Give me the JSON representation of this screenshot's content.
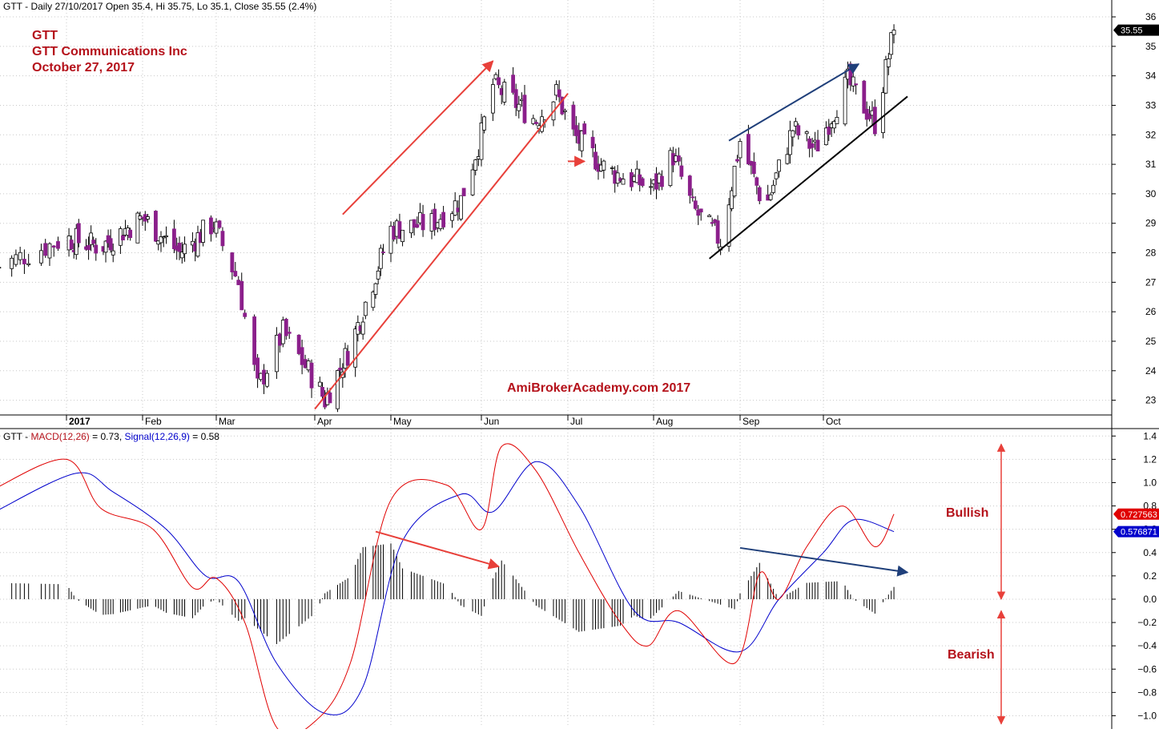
{
  "price_header": {
    "prefix": "GTT - Daily 27/10/2017 Open 35.4, Hi 35.75, Lo 35.1, Close 35.55 (2.4%)"
  },
  "macd_header": {
    "prefix": "GTT - ",
    "macd_label": "MACD(12,26)",
    "macd_value": " = 0.73, ",
    "signal_label": "Signal(12,26,9)",
    "signal_value": " = 0.58"
  },
  "title_block": {
    "line1": "GTT",
    "line2": "GTT Communications Inc",
    "line3": "October 27, 2017"
  },
  "watermark": "AmiBrokerAcademy.com  2017",
  "annotations": {
    "bullish": "Bullish",
    "bearish": "Bearish"
  },
  "last_price_label": "35.55",
  "macd_last_label": "0.727563",
  "signal_last_label": "0.576871",
  "colors": {
    "up_candle": "#ffffff",
    "down_candle": "#8b1f8b",
    "macd_line": "#e00000",
    "signal_line": "#0000cc",
    "trend_red": "#e8403a",
    "trend_blue": "#1f3f7a",
    "annotation_red": "#b5121b"
  },
  "chart_data": [
    {
      "type": "candlestick",
      "title": "GTT - Daily 27/10/2017",
      "x_tick_labels": [
        "2017",
        "Feb",
        "Mar",
        "Apr",
        "May",
        "Jun",
        "Jul",
        "Aug",
        "Sep",
        "Oct"
      ],
      "y_tick_labels": [
        "23",
        "24",
        "25",
        "26",
        "27",
        "28",
        "29",
        "30",
        "31",
        "32",
        "33",
        "34",
        "35",
        "36"
      ],
      "ylim": [
        22.5,
        36.3
      ],
      "grid": true,
      "last": {
        "date": "27/10/2017",
        "open": 35.4,
        "high": 35.75,
        "low": 35.1,
        "close": 35.55,
        "change_pct": 2.4
      },
      "close_path_anchors": [
        {
          "date": "2016-12-15",
          "close": 27.5
        },
        {
          "date": "2017-01-01",
          "close": 28.5
        },
        {
          "date": "2017-01-15",
          "close": 28.2
        },
        {
          "date": "2017-02-01",
          "close": 29.2
        },
        {
          "date": "2017-02-15",
          "close": 28.0
        },
        {
          "date": "2017-02-28",
          "close": 29.0
        },
        {
          "date": "2017-03-08",
          "close": 27.0
        },
        {
          "date": "2017-03-14",
          "close": 23.4
        },
        {
          "date": "2017-03-22",
          "close": 25.3
        },
        {
          "date": "2017-04-05",
          "close": 23.0
        },
        {
          "date": "2017-04-15",
          "close": 24.8
        },
        {
          "date": "2017-05-01",
          "close": 28.8
        },
        {
          "date": "2017-05-15",
          "close": 29.0
        },
        {
          "date": "2017-05-25",
          "close": 29.8
        },
        {
          "date": "2017-06-01",
          "close": 32.0
        },
        {
          "date": "2017-06-05",
          "close": 33.7
        },
        {
          "date": "2017-06-20",
          "close": 32.5
        },
        {
          "date": "2017-06-27",
          "close": 33.4
        },
        {
          "date": "2017-07-03",
          "close": 32.0
        },
        {
          "date": "2017-07-15",
          "close": 30.8
        },
        {
          "date": "2017-08-01",
          "close": 30.2
        },
        {
          "date": "2017-08-08",
          "close": 31.3
        },
        {
          "date": "2017-08-15",
          "close": 29.5
        },
        {
          "date": "2017-08-25",
          "close": 28.4
        },
        {
          "date": "2017-09-01",
          "close": 31.8
        },
        {
          "date": "2017-09-10",
          "close": 29.5
        },
        {
          "date": "2017-09-20",
          "close": 32.2
        },
        {
          "date": "2017-09-28",
          "close": 31.5
        },
        {
          "date": "2017-10-10",
          "close": 33.8
        },
        {
          "date": "2017-10-20",
          "close": 32.4
        },
        {
          "date": "2017-10-27",
          "close": 35.55
        }
      ],
      "trendlines": [
        {
          "color": "red",
          "from": {
            "date": "2017-04-12",
            "price": 29.3
          },
          "to": {
            "date": "2017-06-05",
            "price": 34.5
          },
          "arrow": true
        },
        {
          "color": "red",
          "from": {
            "date": "2017-04-01",
            "price": 22.7
          },
          "to": {
            "date": "2017-07-01",
            "price": 33.4
          },
          "arrow": false
        },
        {
          "color": "red",
          "from": {
            "date": "2017-07-01",
            "price": 31.1
          },
          "to": {
            "date": "2017-07-07",
            "price": 31.1
          },
          "arrow": true
        },
        {
          "color": "blue",
          "from": {
            "date": "2017-08-28",
            "price": 31.8
          },
          "to": {
            "date": "2017-10-14",
            "price": 34.4
          },
          "arrow": true
        },
        {
          "color": "black",
          "from": {
            "date": "2017-08-21",
            "price": 27.8
          },
          "to": {
            "date": "2017-11-01",
            "price": 33.3
          },
          "arrow": false
        }
      ]
    },
    {
      "type": "line",
      "title": "MACD(12,26) / Signal(12,26,9)",
      "y_tick_labels": [
        "1.4",
        "1.2",
        "1.0",
        "0.8",
        "0.6",
        "0.4",
        "0.2",
        "0.0",
        "-0.2",
        "-0.4",
        "-0.6",
        "-0.8",
        "-1.0"
      ],
      "ylim": [
        -1.1,
        1.45
      ],
      "grid": true,
      "series": [
        {
          "name": "MACD(12,26)",
          "last": 0.73,
          "points": [
            {
              "date": "2016-12-15",
              "value": 0.95
            },
            {
              "date": "2017-01-01",
              "value": 1.2
            },
            {
              "date": "2017-01-15",
              "value": 0.78
            },
            {
              "date": "2017-02-05",
              "value": 0.6
            },
            {
              "date": "2017-02-20",
              "value": 0.1
            },
            {
              "date": "2017-03-01",
              "value": 0.18
            },
            {
              "date": "2017-03-10",
              "value": -0.2
            },
            {
              "date": "2017-03-20",
              "value": -1.1
            },
            {
              "date": "2017-04-01",
              "value": -1.05
            },
            {
              "date": "2017-04-15",
              "value": -0.55
            },
            {
              "date": "2017-05-01",
              "value": 0.85
            },
            {
              "date": "2017-05-20",
              "value": 0.98
            },
            {
              "date": "2017-06-01",
              "value": 0.6
            },
            {
              "date": "2017-06-08",
              "value": 1.31
            },
            {
              "date": "2017-06-20",
              "value": 1.1
            },
            {
              "date": "2017-07-05",
              "value": 0.4
            },
            {
              "date": "2017-07-20",
              "value": -0.2
            },
            {
              "date": "2017-07-30",
              "value": -0.4
            },
            {
              "date": "2017-08-10",
              "value": -0.1
            },
            {
              "date": "2017-08-30",
              "value": -0.55
            },
            {
              "date": "2017-09-08",
              "value": 0.22
            },
            {
              "date": "2017-09-15",
              "value": 0.0
            },
            {
              "date": "2017-09-25",
              "value": 0.45
            },
            {
              "date": "2017-10-08",
              "value": 0.8
            },
            {
              "date": "2017-10-20",
              "value": 0.45
            },
            {
              "date": "2017-10-27",
              "value": 0.73
            }
          ]
        },
        {
          "name": "Signal(12,26,9)",
          "last": 0.58,
          "points": [
            {
              "date": "2016-12-15",
              "value": 0.75
            },
            {
              "date": "2017-01-05",
              "value": 1.08
            },
            {
              "date": "2017-01-20",
              "value": 0.92
            },
            {
              "date": "2017-02-10",
              "value": 0.6
            },
            {
              "date": "2017-02-25",
              "value": 0.2
            },
            {
              "date": "2017-03-08",
              "value": 0.15
            },
            {
              "date": "2017-03-20",
              "value": -0.55
            },
            {
              "date": "2017-04-05",
              "value": -0.98
            },
            {
              "date": "2017-04-20",
              "value": -0.75
            },
            {
              "date": "2017-05-05",
              "value": 0.5
            },
            {
              "date": "2017-05-25",
              "value": 0.9
            },
            {
              "date": "2017-06-05",
              "value": 0.75
            },
            {
              "date": "2017-06-20",
              "value": 1.18
            },
            {
              "date": "2017-07-05",
              "value": 0.8
            },
            {
              "date": "2017-07-25",
              "value": -0.1
            },
            {
              "date": "2017-08-10",
              "value": -0.2
            },
            {
              "date": "2017-09-01",
              "value": -0.45
            },
            {
              "date": "2017-09-15",
              "value": 0.0
            },
            {
              "date": "2017-10-01",
              "value": 0.4
            },
            {
              "date": "2017-10-12",
              "value": 0.68
            },
            {
              "date": "2017-10-27",
              "value": 0.58
            }
          ]
        }
      ],
      "divergence_lines": [
        {
          "color": "red",
          "from": {
            "date": "2017-04-25",
            "value": 0.58
          },
          "to": {
            "date": "2017-06-07",
            "value": 0.28
          }
        },
        {
          "color": "blue",
          "from": {
            "date": "2017-09-01",
            "value": 0.44
          },
          "to": {
            "date": "2017-11-01",
            "value": 0.23
          }
        }
      ],
      "range_arrows": [
        {
          "label_key": "bullish",
          "from": 1.33,
          "to": 0.0
        },
        {
          "label_key": "bearish",
          "from": -0.1,
          "to": -1.07
        }
      ]
    }
  ]
}
